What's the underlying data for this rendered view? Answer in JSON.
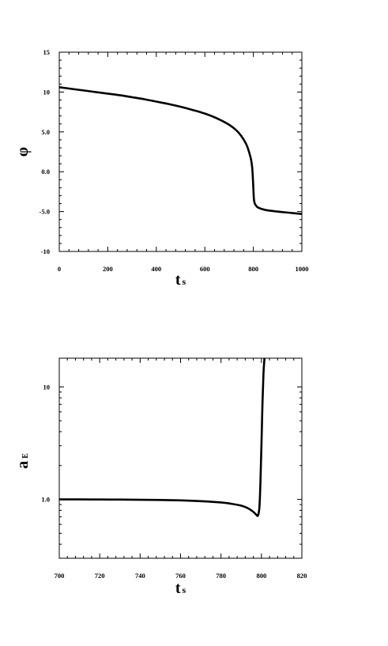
{
  "chart_data": [
    {
      "type": "line",
      "title": "",
      "xlabel": "t",
      "xlabel_sub": "s",
      "ylabel": "φ",
      "ylabel_sub": "",
      "xlim": [
        0,
        1000
      ],
      "ylim": [
        -10,
        15
      ],
      "xticks": [
        0,
        200,
        400,
        600,
        800,
        1000
      ],
      "xtick_labels": [
        "0",
        "200",
        "400",
        "600",
        "800",
        "1000"
      ],
      "yticks": [
        15,
        10,
        5,
        0,
        -5,
        -10
      ],
      "ytick_labels": [
        "15",
        "10",
        "5.0",
        "0.0",
        "-5.0",
        "-10"
      ],
      "grid": false,
      "series": [
        {
          "x": [
            0,
            50,
            100,
            150,
            200,
            250,
            300,
            350,
            400,
            450,
            500,
            550,
            600,
            650,
            700,
            730,
            750,
            770,
            780,
            790,
            795,
            798,
            800,
            802,
            805,
            810,
            820,
            850,
            900,
            950,
            1000
          ],
          "y": [
            10.6,
            10.4,
            10.2,
            10.0,
            9.8,
            9.6,
            9.35,
            9.1,
            8.8,
            8.5,
            8.15,
            7.75,
            7.3,
            6.7,
            5.9,
            5.2,
            4.5,
            3.5,
            2.7,
            1.6,
            0.6,
            -0.8,
            -2.0,
            -3.3,
            -3.9,
            -4.2,
            -4.5,
            -4.8,
            -5.0,
            -5.15,
            -5.3
          ]
        }
      ]
    },
    {
      "type": "line",
      "title": "",
      "xlabel": "t",
      "xlabel_sub": "s",
      "ylabel": "a",
      "ylabel_sub": "E",
      "xlim": [
        700,
        820
      ],
      "ylim": [
        0.3,
        18
      ],
      "yscale": "log",
      "xticks": [
        700,
        720,
        740,
        760,
        780,
        800,
        820
      ],
      "xtick_labels": [
        "700",
        "720",
        "740",
        "760",
        "780",
        "800",
        "820"
      ],
      "yticks": [
        10,
        1.0
      ],
      "ytick_labels": [
        "10",
        "1.0"
      ],
      "grid": false,
      "series": [
        {
          "x": [
            700,
            710,
            720,
            730,
            740,
            750,
            760,
            770,
            780,
            785,
            790,
            793,
            795,
            796.5,
            797.5,
            798.3,
            799.0,
            799.5,
            800.0,
            800.5,
            801.0,
            801.5
          ],
          "y": [
            1.0,
            1.0,
            0.998,
            0.996,
            0.992,
            0.988,
            0.98,
            0.965,
            0.94,
            0.915,
            0.88,
            0.84,
            0.8,
            0.76,
            0.73,
            0.72,
            0.85,
            1.4,
            3.0,
            7.0,
            13.0,
            18.0
          ]
        }
      ]
    }
  ]
}
